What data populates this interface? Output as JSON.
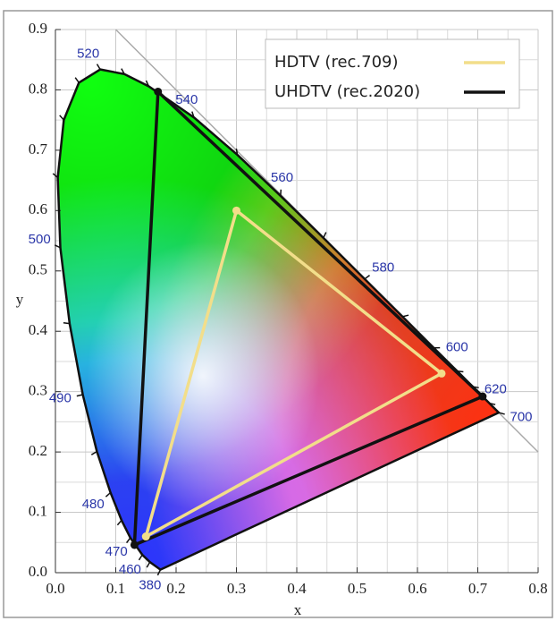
{
  "chart_data": {
    "type": "line",
    "xlabel": "x",
    "ylabel": "y",
    "xlim": [
      0,
      0.8
    ],
    "ylim": [
      0,
      0.9
    ],
    "xticks": [
      {
        "value": 0,
        "label": "0.0"
      },
      0.1,
      0.2,
      0.3,
      0.4,
      0.5,
      0.6,
      0.7,
      0.8
    ],
    "yticks": [
      {
        "value": 0,
        "label": "0.0"
      },
      0.1,
      0.2,
      0.3,
      0.4,
      0.5,
      0.6,
      0.7,
      0.8,
      0.9
    ],
    "grid": true,
    "legend": "upper right",
    "series": [
      {
        "name": "HDTV (rec.709)",
        "color": "#f2de8a",
        "x": [
          0.64,
          0.3,
          0.15
        ],
        "values": [
          0.33,
          0.6,
          0.06
        ]
      },
      {
        "name": "UHDTV (rec.2020)",
        "color": "#111111",
        "x": [
          0.708,
          0.17,
          0.131
        ],
        "values": [
          0.292,
          0.797,
          0.046
        ]
      }
    ],
    "spectral_locus": {
      "color": "#111111",
      "label_color": "#2a36a8",
      "labels": [
        380,
        null,
        460,
        470,
        null,
        480,
        null,
        490,
        null,
        500,
        null,
        null,
        null,
        520,
        null,
        null,
        540,
        null,
        560,
        null,
        580,
        null,
        600,
        null,
        620,
        null,
        700
      ],
      "x": [
        0.1741,
        0.1566,
        0.144,
        0.1241,
        0.1096,
        0.0913,
        0.0687,
        0.0454,
        0.0235,
        0.0082,
        0.0039,
        0.0139,
        0.0389,
        0.0743,
        0.1142,
        0.1547,
        0.2296,
        0.3016,
        0.3731,
        0.4441,
        0.5125,
        0.5752,
        0.627,
        0.6658,
        0.6915,
        0.719,
        0.7347
      ],
      "values": [
        0.005,
        0.0177,
        0.0297,
        0.0578,
        0.0868,
        0.1327,
        0.2007,
        0.295,
        0.4127,
        0.5384,
        0.6548,
        0.7502,
        0.812,
        0.8338,
        0.8262,
        0.8059,
        0.7543,
        0.6923,
        0.6245,
        0.5547,
        0.4866,
        0.4242,
        0.3725,
        0.334,
        0.3083,
        0.2809,
        0.2653
      ]
    }
  }
}
